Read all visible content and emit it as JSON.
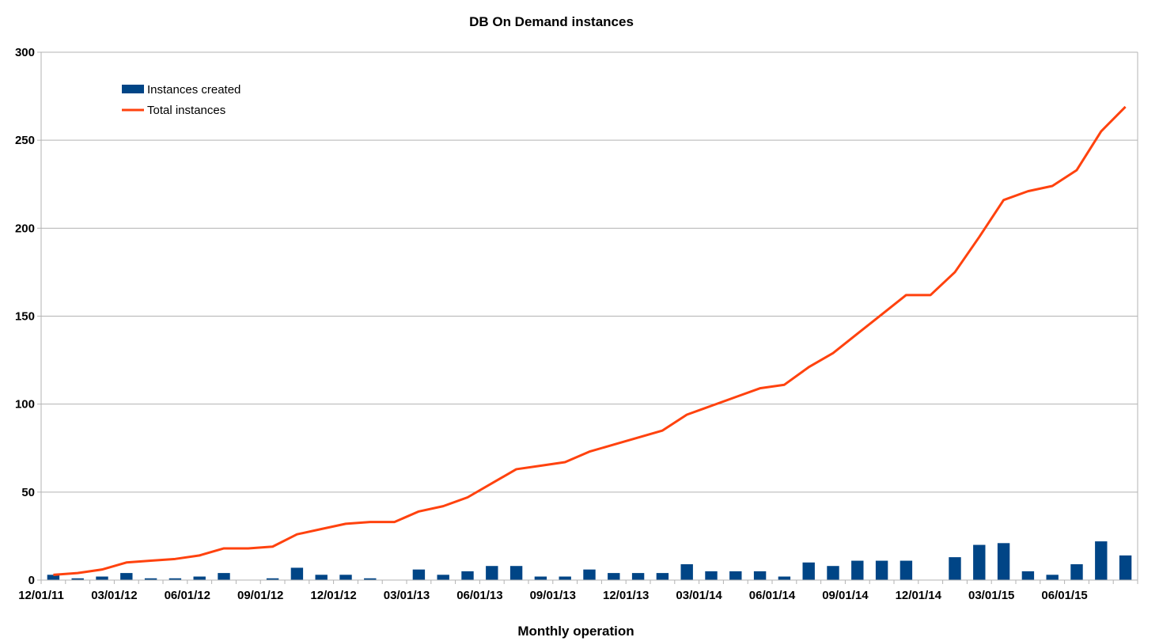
{
  "chart_data": {
    "type": "bar",
    "title": "DB On Demand instances",
    "xlabel": "Monthly operation",
    "ylabel": "",
    "ylim": [
      0,
      300
    ],
    "y_ticks": [
      "0",
      "50",
      "100",
      "150",
      "200",
      "250",
      "300"
    ],
    "grid": true,
    "legend_position": "top-left",
    "x_tick_labels": [
      "12/01/11",
      "03/01/12",
      "06/01/12",
      "09/01/12",
      "12/01/12",
      "03/01/13",
      "06/01/13",
      "09/01/13",
      "12/01/13",
      "03/01/14",
      "06/01/14",
      "09/01/14",
      "12/01/14",
      "03/01/15",
      "06/01/15"
    ],
    "categories": [
      "12/01/11",
      "01/01/12",
      "02/01/12",
      "03/01/12",
      "04/01/12",
      "05/01/12",
      "06/01/12",
      "07/01/12",
      "08/01/12",
      "09/01/12",
      "10/01/12",
      "11/01/12",
      "12/01/12",
      "01/01/13",
      "02/01/13",
      "03/01/13",
      "04/01/13",
      "05/01/13",
      "06/01/13",
      "07/01/13",
      "08/01/13",
      "09/01/13",
      "10/01/13",
      "11/01/13",
      "12/01/13",
      "01/01/14",
      "02/01/14",
      "03/01/14",
      "04/01/14",
      "05/01/14",
      "06/01/14",
      "07/01/14",
      "08/01/14",
      "09/01/14",
      "10/01/14",
      "11/01/14",
      "12/01/14",
      "01/01/15",
      "02/01/15",
      "03/01/15",
      "04/01/15",
      "05/01/15",
      "06/01/15",
      "07/01/15",
      "08/01/15"
    ],
    "series": [
      {
        "name": "Instances created",
        "type": "bar",
        "color": "#004586",
        "values": [
          3,
          1,
          2,
          4,
          1,
          1,
          2,
          4,
          0,
          1,
          7,
          3,
          3,
          1,
          0,
          6,
          3,
          5,
          8,
          8,
          2,
          2,
          6,
          4,
          4,
          4,
          9,
          5,
          5,
          5,
          2,
          10,
          8,
          11,
          11,
          11,
          0,
          13,
          20,
          21,
          5,
          3,
          9,
          22,
          14
        ]
      },
      {
        "name": "Total instances",
        "type": "line",
        "color": "#ff420e",
        "values": [
          3,
          4,
          6,
          10,
          11,
          12,
          14,
          18,
          18,
          19,
          26,
          29,
          32,
          33,
          33,
          39,
          42,
          47,
          55,
          63,
          65,
          67,
          73,
          77,
          81,
          85,
          94,
          99,
          104,
          109,
          111,
          121,
          129,
          140,
          151,
          162,
          162,
          175,
          195,
          216,
          221,
          224,
          233,
          255,
          269
        ]
      }
    ]
  }
}
